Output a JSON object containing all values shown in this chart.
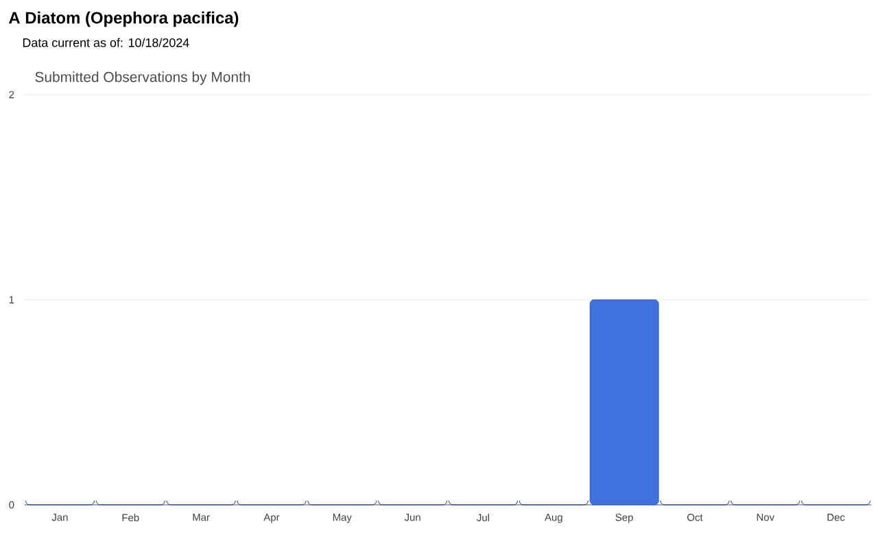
{
  "chart_data": {
    "type": "bar",
    "title": "A Diatom   (Opephora pacifica)",
    "subtitle": "Data current as of: 10/18/2024",
    "annotations": [
      "Submitted Observations by Month"
    ],
    "categories": [
      "Jan",
      "Feb",
      "Mar",
      "Apr",
      "May",
      "Jun",
      "Jul",
      "Aug",
      "Sep",
      "Oct",
      "Nov",
      "Dec"
    ],
    "values": [
      0,
      0,
      0,
      0,
      0,
      0,
      0,
      0,
      1,
      0,
      0,
      0
    ],
    "color": "#3f72dc",
    "ylim": [
      0,
      2
    ],
    "yticks": [
      0,
      1,
      2
    ],
    "grid": "y"
  }
}
